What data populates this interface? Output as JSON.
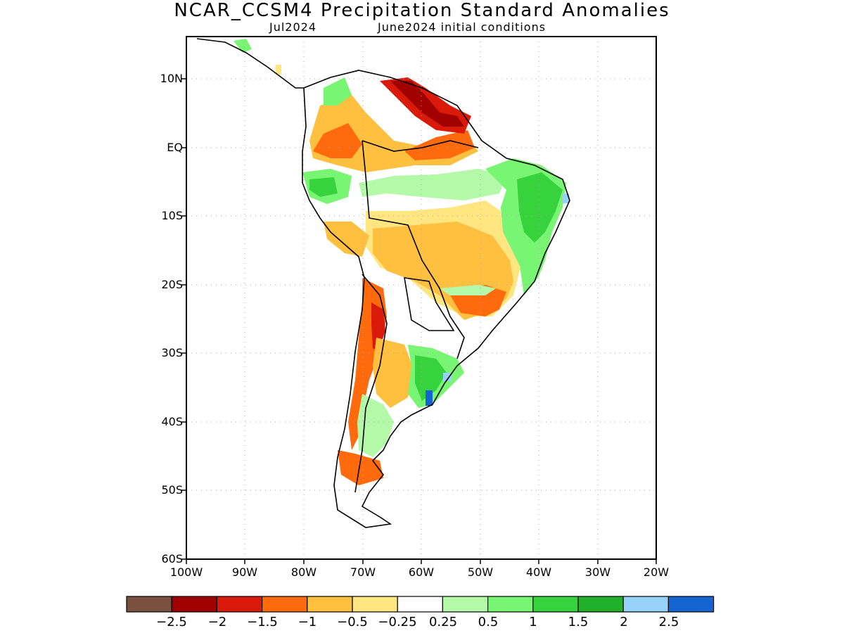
{
  "header": {
    "title": "NCAR_CCSM4 Precipitation Standard Anomalies",
    "target_month": "Jul2024",
    "init": "June2024 initial conditions"
  },
  "axes": {
    "lat_labels": [
      "10N",
      "EQ",
      "10S",
      "20S",
      "30S",
      "40S",
      "50S",
      "60S"
    ],
    "lon_labels": [
      "100W",
      "90W",
      "80W",
      "70W",
      "60W",
      "50W",
      "40W",
      "30W",
      "20W"
    ]
  },
  "colorbar": {
    "colors": [
      "#7a5140",
      "#a10000",
      "#d91a0a",
      "#ff6a0c",
      "#ffbf3f",
      "#ffe681",
      "#ffffff",
      "#b4f9a7",
      "#78f572",
      "#37d33e",
      "#20b02a",
      "#96d2fa",
      "#1464d2"
    ],
    "labels": [
      "−2.5",
      "−2",
      "−1.5",
      "−1",
      "−0.5",
      "−0.25",
      "0.25",
      "0.5",
      "1",
      "1.5",
      "2",
      "2.5"
    ]
  }
}
